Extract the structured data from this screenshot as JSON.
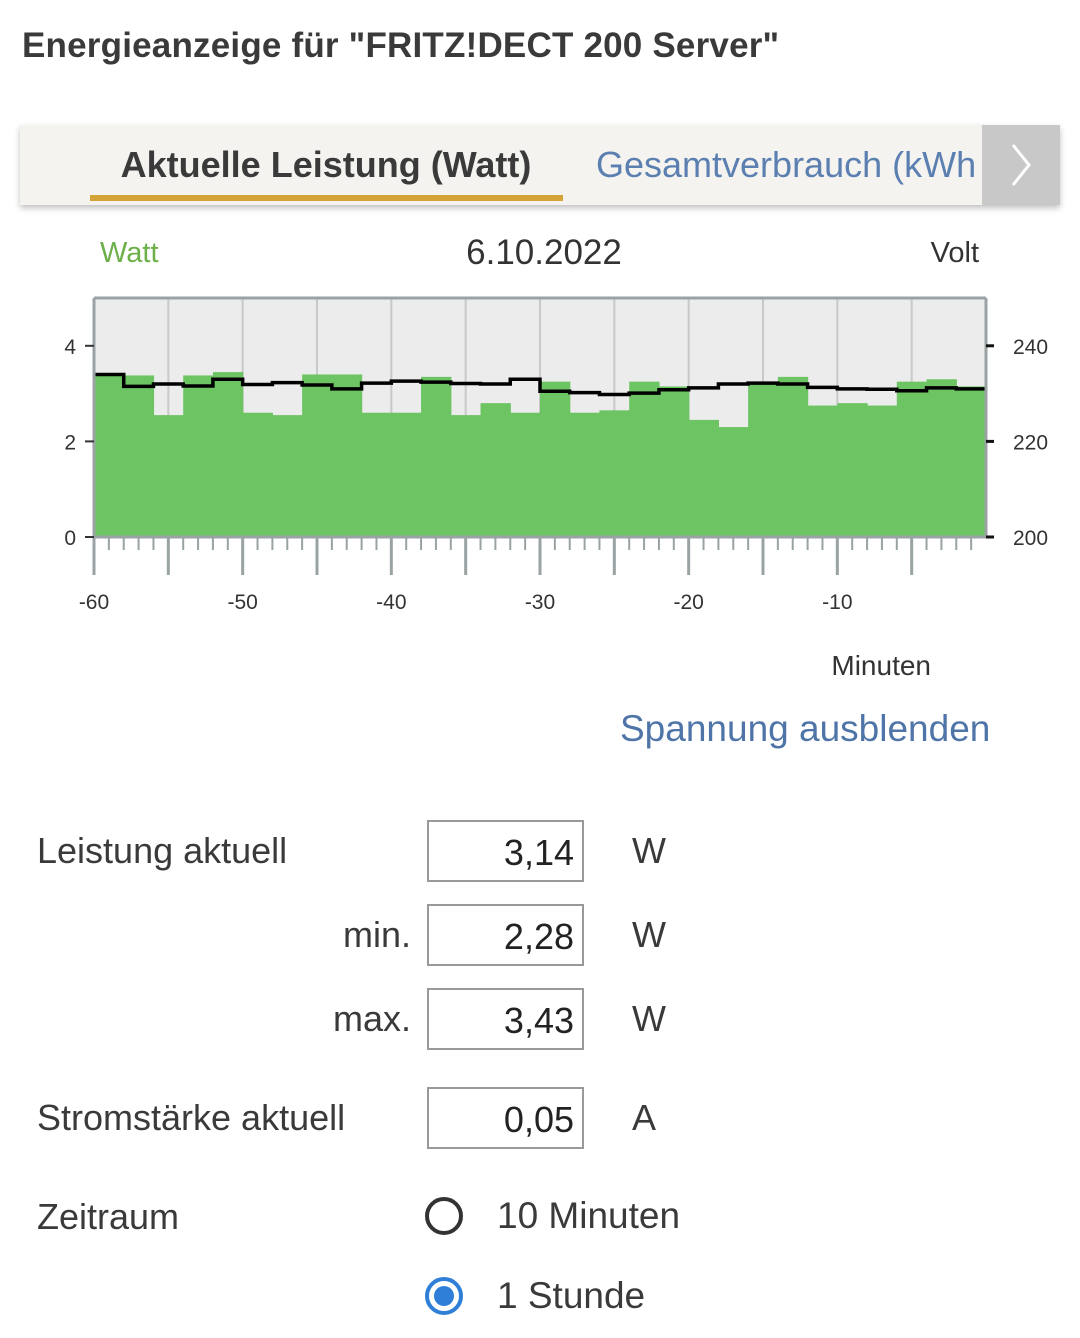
{
  "header": {
    "title": "Energieanzeige für \"FRITZ!DECT 200 Server\""
  },
  "tabs": {
    "active": "Aktuelle Leistung (Watt)",
    "inactive": "Gesamtverbrauch (kWh"
  },
  "colors": {
    "accent_underline": "#d4a437",
    "link": "#4e74a8",
    "power_fill": "#6cc463",
    "voltage_line": "#000000",
    "radio_selected": "#2f7fd8"
  },
  "chart_data": {
    "type": "area",
    "date": "6.10.2022",
    "ylabel_left": "Watt",
    "ylabel_right": "Volt",
    "xlabel": "Minuten",
    "xlim": [
      -60,
      0
    ],
    "ylim_left": [
      0,
      5
    ],
    "ylim_right": [
      200,
      250
    ],
    "yticks_left": [
      "0",
      "2",
      "4"
    ],
    "yticks_right": [
      "200",
      "220",
      "240"
    ],
    "xticks": [
      "-60",
      "-50",
      "-40",
      "-30",
      "-20",
      "-10"
    ],
    "grid": true,
    "series": [
      {
        "name": "Watt",
        "axis": "left",
        "style": "step-area",
        "values": [
          3.4,
          3.38,
          2.55,
          3.38,
          3.45,
          2.6,
          2.55,
          3.4,
          3.4,
          2.6,
          2.6,
          3.35,
          2.55,
          2.8,
          2.6,
          3.25,
          2.6,
          2.65,
          3.25,
          3.15,
          2.45,
          2.3,
          3.2,
          3.35,
          2.75,
          2.8,
          2.75,
          3.25,
          3.3,
          3.15
        ]
      },
      {
        "name": "Volt",
        "axis": "right",
        "style": "step-line",
        "values": [
          234.0,
          231.5,
          232.0,
          231.6,
          233.0,
          231.9,
          232.3,
          231.8,
          231.0,
          232.2,
          232.6,
          232.4,
          232.1,
          232.0,
          233.0,
          230.5,
          230.2,
          229.8,
          230.1,
          230.8,
          231.2,
          232.0,
          232.2,
          232.0,
          231.3,
          231.0,
          230.9,
          230.6,
          231.2,
          231.0
        ]
      }
    ]
  },
  "controls": {
    "toggle_voltage_link": "Spannung ausblenden",
    "leistung_label": "Leistung aktuell",
    "leistung_value": "3,14",
    "leistung_unit": "W",
    "min_label": "min.",
    "min_value": "2,28",
    "min_unit": "W",
    "max_label": "max.",
    "max_value": "3,43",
    "max_unit": "W",
    "strom_label": "Stromstärke aktuell",
    "strom_value": "0,05",
    "strom_unit": "A",
    "zeitraum_label": "Zeitraum",
    "options": [
      {
        "label": "10 Minuten",
        "selected": false
      },
      {
        "label": "1 Stunde",
        "selected": true
      }
    ]
  }
}
